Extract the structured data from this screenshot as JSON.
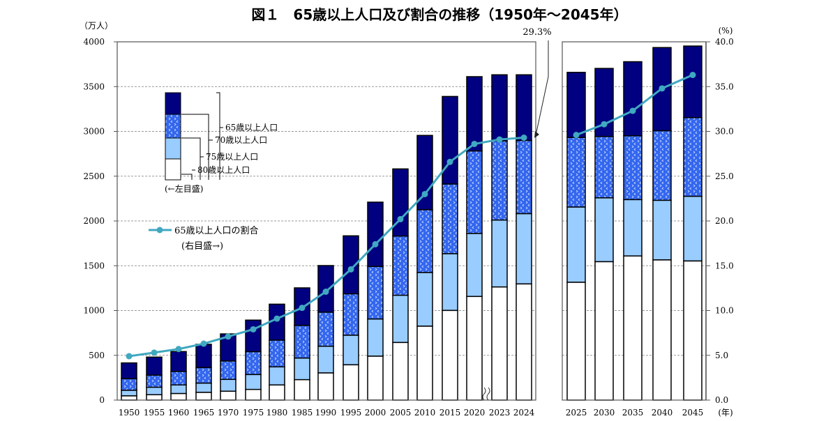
{
  "chart_data": {
    "type": "bar",
    "title": "図１　65歳以上人口及び割合の推移（1950年～2045年）",
    "ylabel_left": "（万人）",
    "ylabel_right": "(%)",
    "xlabel": "(年)",
    "ylim_left": [
      0,
      4000
    ],
    "ylim_right": [
      0,
      40
    ],
    "yticks_left": [
      "0",
      "500",
      "1000",
      "1500",
      "2000",
      "2500",
      "3000",
      "3500",
      "4000"
    ],
    "yticks_right": [
      "0.0",
      "5.0",
      "10.0",
      "15.0",
      "20.0",
      "25.0",
      "30.0",
      "35.0",
      "40.0"
    ],
    "grid": true,
    "categories": [
      "1950",
      "1955",
      "1960",
      "1965",
      "1970",
      "1975",
      "1980",
      "1985",
      "1990",
      "1995",
      "2000",
      "2005",
      "2010",
      "2015",
      "2020",
      "2023",
      "2024",
      "2025",
      "2030",
      "2035",
      "2040",
      "2045"
    ],
    "series": [
      {
        "name": "65歳以上人口",
        "axis": "left",
        "values": [
          415,
          480,
          542,
          623,
          739,
          893,
          1071,
          1253,
          1502,
          1834,
          2210,
          2581,
          2955,
          3390,
          3611,
          3632,
          3632,
          3659,
          3703,
          3778,
          3936,
          3953
        ]
      },
      {
        "name": "70歳以上人口",
        "axis": "left",
        "values": [
          239,
          278,
          319,
          363,
          436,
          540,
          669,
          833,
          981,
          1186,
          1492,
          1831,
          2125,
          2412,
          2781,
          2893,
          2898,
          2932,
          2943,
          2951,
          3007,
          3154
        ]
      },
      {
        "name": "75歳以上人口",
        "axis": "left",
        "values": [
          109,
          143,
          169,
          189,
          231,
          285,
          371,
          469,
          601,
          724,
          905,
          1170,
          1424,
          1634,
          1860,
          2010,
          2081,
          2155,
          2258,
          2238,
          2230,
          2275
        ]
      },
      {
        "name": "80歳以上人口",
        "axis": "left",
        "values": [
          47,
          60,
          73,
          86,
          99,
          119,
          169,
          228,
          303,
          394,
          490,
          643,
          825,
          1001,
          1157,
          1263,
          1297,
          1315,
          1545,
          1609,
          1565,
          1553
        ]
      },
      {
        "name": "65歳以上人口の割合",
        "axis": "right",
        "type": "line",
        "values": [
          4.9,
          5.3,
          5.7,
          6.3,
          7.1,
          7.9,
          9.1,
          10.3,
          12.1,
          14.6,
          17.4,
          20.2,
          23.0,
          26.6,
          28.6,
          29.1,
          29.3,
          29.6,
          30.8,
          32.3,
          34.8,
          36.3
        ]
      }
    ],
    "annotation": "29.3%",
    "legend": {
      "bars": [
        "65歳以上人口",
        "70歳以上人口",
        "75歳以上人口",
        "80歳以上人口"
      ],
      "bars_axis_note": "(←左目盛)",
      "line": "65歳以上人口の割合",
      "line_axis_note": "(右目盛→)",
      "placement": "top-left"
    },
    "colors": {
      "65": "#000080",
      "70": "#3366ee",
      "75": "#99ccff",
      "80": "#ffffff",
      "line": "#40a8c0"
    }
  }
}
